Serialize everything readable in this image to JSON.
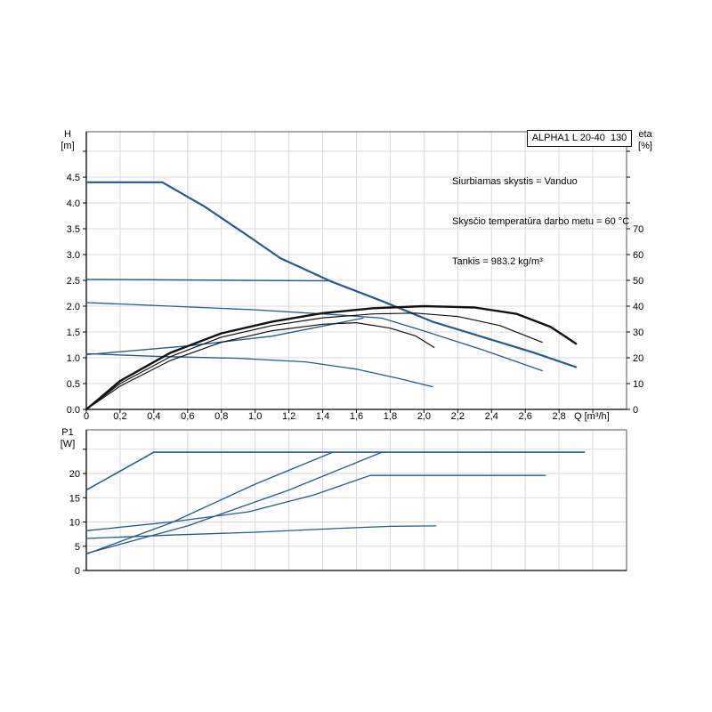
{
  "page": {
    "background": "#ffffff"
  },
  "header": {
    "title_box": "ALPHA1 L 20-40  130",
    "info_lines": [
      "Siurbiamas skystis = Vanduo",
      "Skysčio temperatūra darbo metu = 60 °C",
      "Tankis = 983.2 kg/m³"
    ]
  },
  "colors": {
    "curve_blue": "#245a8d",
    "curve_black": "#111111",
    "grid": "#d9d9d9",
    "frame": "#555555",
    "axis": "#000000",
    "text": "#000000"
  },
  "chart_data": [
    {
      "id": "hq-eta-chart",
      "type": "line",
      "x_axis": {
        "label": "Q [m³/h]",
        "min": 0,
        "max": 3.2,
        "grid_step": 0.2,
        "tick_values": [
          0,
          0.2,
          0.4,
          0.6,
          0.8,
          1.0,
          1.2,
          1.4,
          1.6,
          1.8,
          2.0,
          2.2,
          2.4,
          2.6,
          2.8,
          3.0
        ],
        "tick_labels": [
          "0",
          "0,2",
          "0,4",
          "0,6",
          "0,8",
          "1,0",
          "1,2",
          "1,4",
          "1,6",
          "1,8",
          "2,0",
          "2,2",
          "2,4",
          "2,6",
          "2,8",
          ""
        ]
      },
      "y_left": {
        "label_lines": [
          "H",
          "[m]"
        ],
        "min": 0,
        "max": 5.38,
        "grid_step": 0.5,
        "tick_values": [
          0,
          0.5,
          1.0,
          1.5,
          2.0,
          2.5,
          3.0,
          3.5,
          4.0,
          4.5,
          5.0
        ],
        "tick_labels": [
          "0.0",
          "0.5",
          "1.0",
          "1.5",
          "2.0",
          "2.5",
          "3.0",
          "3.5",
          "4.0",
          "4.5",
          ""
        ]
      },
      "y_right": {
        "label_lines": [
          "eta",
          "[%]"
        ],
        "min": 0,
        "max": 107.6,
        "tick_values": [
          0,
          10,
          20,
          30,
          40,
          50,
          60,
          70,
          80,
          90,
          100
        ],
        "tick_labels": [
          "0",
          "10",
          "20",
          "30",
          "40",
          "50",
          "60",
          "70",
          "",
          "",
          ""
        ]
      },
      "series": [
        {
          "name": "speed-3-curve",
          "axis": "left",
          "color": "blue",
          "width": 2.2,
          "points": [
            [
              0,
              4.4
            ],
            [
              0.45,
              4.4
            ],
            [
              0.7,
              3.93
            ],
            [
              0.95,
              3.38
            ],
            [
              1.15,
              2.93
            ],
            [
              1.45,
              2.48
            ],
            [
              1.75,
              2.1
            ],
            [
              2.05,
              1.7
            ],
            [
              2.35,
              1.4
            ],
            [
              2.65,
              1.1
            ],
            [
              2.9,
              0.82
            ]
          ]
        },
        {
          "name": "speed-2-curve",
          "axis": "left",
          "color": "blue",
          "width": 1.3,
          "points": [
            [
              0,
              2.07
            ],
            [
              0.5,
              2.0
            ],
            [
              1.0,
              1.93
            ],
            [
              1.45,
              1.84
            ],
            [
              1.75,
              1.77
            ],
            [
              2.0,
              1.52
            ],
            [
              2.35,
              1.15
            ],
            [
              2.7,
              0.75
            ]
          ]
        },
        {
          "name": "speed-1-curve",
          "axis": "left",
          "color": "blue",
          "width": 1.3,
          "points": [
            [
              0,
              1.08
            ],
            [
              0.4,
              1.03
            ],
            [
              0.9,
              0.99
            ],
            [
              1.3,
              0.92
            ],
            [
              1.6,
              0.78
            ],
            [
              1.85,
              0.6
            ],
            [
              2.05,
              0.44
            ]
          ]
        },
        {
          "name": "const-pressure-curve",
          "axis": "left",
          "color": "blue",
          "width": 1.4,
          "points": [
            [
              0,
              2.52
            ],
            [
              1.45,
              2.49
            ]
          ]
        },
        {
          "name": "prop-pressure-curve",
          "axis": "left",
          "color": "blue",
          "width": 1.3,
          "points": [
            [
              0,
              1.06
            ],
            [
              0.6,
              1.23
            ],
            [
              1.1,
              1.42
            ],
            [
              1.64,
              1.77
            ]
          ]
        },
        {
          "name": "eta-speed-3-curve",
          "axis": "right",
          "color": "black",
          "width": 2.4,
          "points": [
            [
              0,
              0
            ],
            [
              0.2,
              11
            ],
            [
              0.5,
              22
            ],
            [
              0.8,
              29.5
            ],
            [
              1.1,
              34
            ],
            [
              1.4,
              37.3
            ],
            [
              1.7,
              39.2
            ],
            [
              2.0,
              40
            ],
            [
              2.3,
              39.5
            ],
            [
              2.55,
              37
            ],
            [
              2.75,
              32
            ],
            [
              2.9,
              25.5
            ]
          ]
        },
        {
          "name": "eta-speed-2-curve",
          "axis": "right",
          "color": "black",
          "width": 1.2,
          "points": [
            [
              0,
              0
            ],
            [
              0.2,
              10
            ],
            [
              0.5,
              20.5
            ],
            [
              0.8,
              28
            ],
            [
              1.1,
              32.5
            ],
            [
              1.4,
              35.5
            ],
            [
              1.7,
              37
            ],
            [
              1.95,
              37.3
            ],
            [
              2.2,
              36
            ],
            [
              2.45,
              32.5
            ],
            [
              2.7,
              26
            ]
          ]
        },
        {
          "name": "eta-speed-1-curve",
          "axis": "right",
          "color": "black",
          "width": 1.2,
          "points": [
            [
              0,
              0
            ],
            [
              0.2,
              9
            ],
            [
              0.5,
              19
            ],
            [
              0.8,
              26
            ],
            [
              1.1,
              30.5
            ],
            [
              1.4,
              33
            ],
            [
              1.6,
              33.6
            ],
            [
              1.8,
              31.5
            ],
            [
              1.95,
              28.5
            ],
            [
              2.06,
              24
            ]
          ]
        }
      ]
    },
    {
      "id": "p1-chart",
      "type": "line",
      "x_axis": {
        "label": "",
        "min": 0,
        "max": 3.2,
        "grid_step": 0.2,
        "tick_values": [],
        "tick_labels": []
      },
      "y_left": {
        "label_lines": [
          "P1",
          "[W]"
        ],
        "min": 0,
        "max": 29,
        "grid_step": 5,
        "tick_values": [
          0,
          5,
          10,
          15,
          20,
          25
        ],
        "tick_labels": [
          "0",
          "5",
          "10",
          "15",
          "20",
          ""
        ]
      },
      "series": [
        {
          "name": "p1-speed-3-curve",
          "axis": "left",
          "color": "blue",
          "width": 1.6,
          "points": [
            [
              0,
              16.6
            ],
            [
              0.4,
              24.4
            ],
            [
              2.95,
              24.4
            ]
          ]
        },
        {
          "name": "p1-const-pressure-curve",
          "axis": "left",
          "color": "blue",
          "width": 1.3,
          "points": [
            [
              0,
              3.4
            ],
            [
              0.5,
              9.8
            ],
            [
              1.0,
              17.8
            ],
            [
              1.46,
              24.4
            ]
          ]
        },
        {
          "name": "p1-prop-pressure-curve",
          "axis": "left",
          "color": "blue",
          "width": 1.3,
          "points": [
            [
              0,
              3.5
            ],
            [
              0.6,
              9.2
            ],
            [
              1.2,
              16.6
            ],
            [
              1.75,
              24.4
            ]
          ]
        },
        {
          "name": "p1-speed-2-curve",
          "axis": "left",
          "color": "blue",
          "width": 1.3,
          "points": [
            [
              0,
              8.2
            ],
            [
              0.5,
              10.0
            ],
            [
              0.96,
              12.1
            ],
            [
              1.35,
              15.6
            ],
            [
              1.68,
              19.6
            ],
            [
              2.72,
              19.6
            ]
          ]
        },
        {
          "name": "p1-speed-1-curve",
          "axis": "left",
          "color": "blue",
          "width": 1.3,
          "points": [
            [
              0,
              6.6
            ],
            [
              0.5,
              7.3
            ],
            [
              1.0,
              7.9
            ],
            [
              1.5,
              8.7
            ],
            [
              1.8,
              9.1
            ],
            [
              2.07,
              9.2
            ]
          ]
        }
      ]
    }
  ]
}
